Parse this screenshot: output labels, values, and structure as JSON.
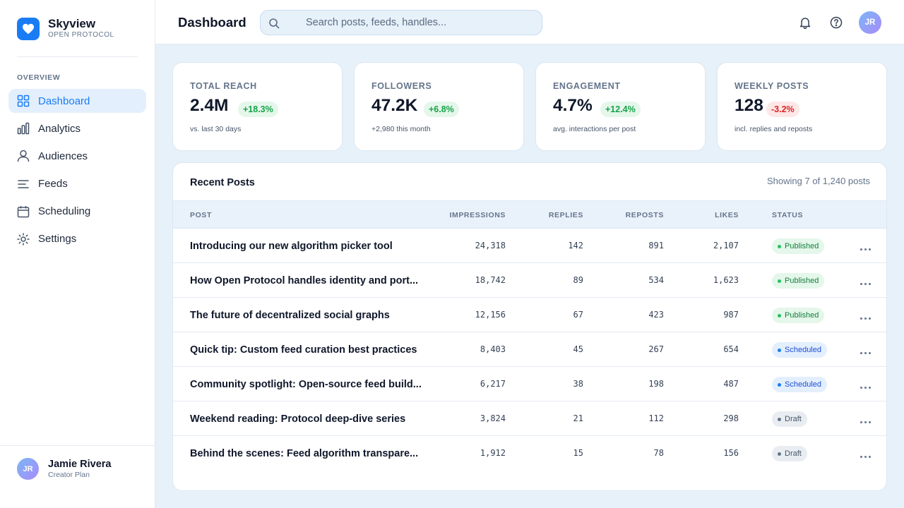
{
  "brand": {
    "name": "Skyview",
    "subtitle": "OPEN PROTOCOL",
    "logo_icon": "heart-icon"
  },
  "sidebar": {
    "section_label": "OVERVIEW",
    "items": [
      {
        "label": "Dashboard",
        "icon": "grid-icon",
        "active": true
      },
      {
        "label": "Analytics",
        "icon": "bar-chart-icon",
        "active": false
      },
      {
        "label": "Audiences",
        "icon": "user-icon",
        "active": false
      },
      {
        "label": "Feeds",
        "icon": "list-icon",
        "active": false
      },
      {
        "label": "Scheduling",
        "icon": "calendar-icon",
        "active": false
      },
      {
        "label": "Settings",
        "icon": "gear-icon",
        "active": false
      }
    ],
    "user": {
      "initials": "JR",
      "name": "Jamie Rivera",
      "plan": "Creator Plan"
    }
  },
  "header": {
    "title": "Dashboard",
    "search": {
      "placeholder": "Search posts, feeds, handles...",
      "value": ""
    },
    "avatar_initials": "JR"
  },
  "stats": [
    {
      "label": "TOTAL REACH",
      "value": "2.4M",
      "delta": "+18.3%",
      "trend": "up",
      "note": "vs. last 30 days"
    },
    {
      "label": "FOLLOWERS",
      "value": "47.2K",
      "delta": "+6.8%",
      "trend": "up",
      "note": "+2,980 this month"
    },
    {
      "label": "ENGAGEMENT",
      "value": "4.7%",
      "delta": "+12.4%",
      "trend": "up",
      "note": "avg. interactions per post"
    },
    {
      "label": "WEEKLY POSTS",
      "value": "128",
      "delta": "-3.2%",
      "trend": "down",
      "note": "incl. replies and reposts"
    }
  ],
  "posts_table": {
    "title": "Recent Posts",
    "meta": "Showing 7 of 1,240 posts",
    "columns": {
      "post": "POST",
      "impressions": "IMPRESSIONS",
      "replies": "REPLIES",
      "reposts": "REPOSTS",
      "likes": "LIKES",
      "status": "STATUS"
    },
    "rows": [
      {
        "title": "Introducing our new algorithm picker tool",
        "impressions": "24,318",
        "replies": "142",
        "reposts": "891",
        "likes": "2,107",
        "status": "Published"
      },
      {
        "title": "How Open Protocol handles identity and port...",
        "impressions": "18,742",
        "replies": "89",
        "reposts": "534",
        "likes": "1,623",
        "status": "Published"
      },
      {
        "title": "The future of decentralized social graphs",
        "impressions": "12,156",
        "replies": "67",
        "reposts": "423",
        "likes": "987",
        "status": "Published"
      },
      {
        "title": "Quick tip: Custom feed curation best practices",
        "impressions": "8,403",
        "replies": "45",
        "reposts": "267",
        "likes": "654",
        "status": "Scheduled"
      },
      {
        "title": "Community spotlight: Open-source feed build...",
        "impressions": "6,217",
        "replies": "38",
        "reposts": "198",
        "likes": "487",
        "status": "Scheduled"
      },
      {
        "title": "Weekend reading: Protocol deep-dive series",
        "impressions": "3,824",
        "replies": "21",
        "reposts": "112",
        "likes": "298",
        "status": "Draft"
      },
      {
        "title": "Behind the scenes: Feed algorithm transpare...",
        "impressions": "1,912",
        "replies": "15",
        "reposts": "78",
        "likes": "156",
        "status": "Draft"
      }
    ]
  },
  "colors": {
    "accent": "#1a7cf5",
    "background": "#e6f1fa",
    "positive": "#16a34a",
    "negative": "#dc2626"
  }
}
